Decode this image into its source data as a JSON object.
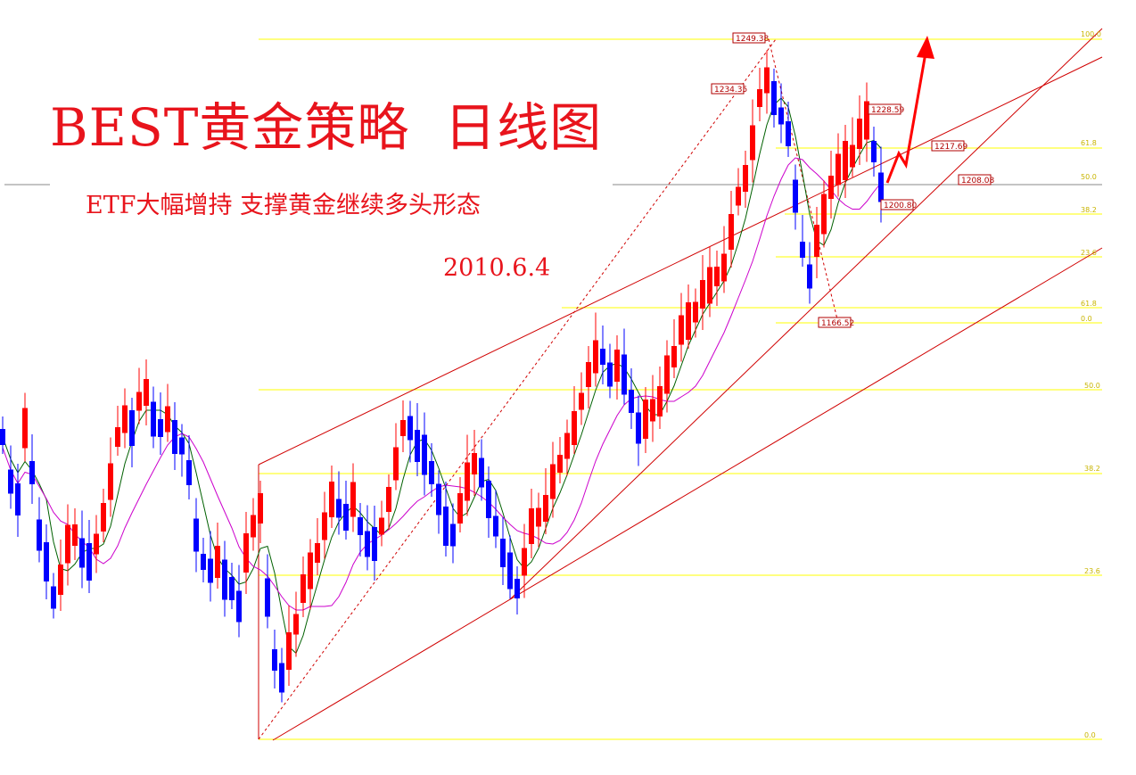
{
  "header": {
    "title": "BEST黄金策略  日线图",
    "subtitle": "ETF大幅增持 支撑黄金继续多头形态",
    "date": "2010.6.4"
  },
  "colors": {
    "bull": "#ff0000",
    "bear": "#0000ff",
    "fib": "#ffff00",
    "channel": "#d00000",
    "ma_fast": "#006000",
    "ma_slow": "#cc00cc",
    "arrow": "#ff0000"
  },
  "chart_data": {
    "type": "candlestick",
    "price_labels": [
      {
        "text": "1249.38"
      },
      {
        "text": "1234.35"
      },
      {
        "text": "1228.59"
      },
      {
        "text": "1217.69"
      },
      {
        "text": "1208.08"
      },
      {
        "text": "1200.80"
      },
      {
        "text": "1166.52"
      }
    ],
    "fib_upper": [
      "100.0",
      "61.8",
      "50.0",
      "38.2",
      "23.6",
      "61.8",
      "0.0"
    ],
    "fib_lower": [
      "50.0",
      "38.2",
      "23.6",
      "0.0"
    ]
  }
}
